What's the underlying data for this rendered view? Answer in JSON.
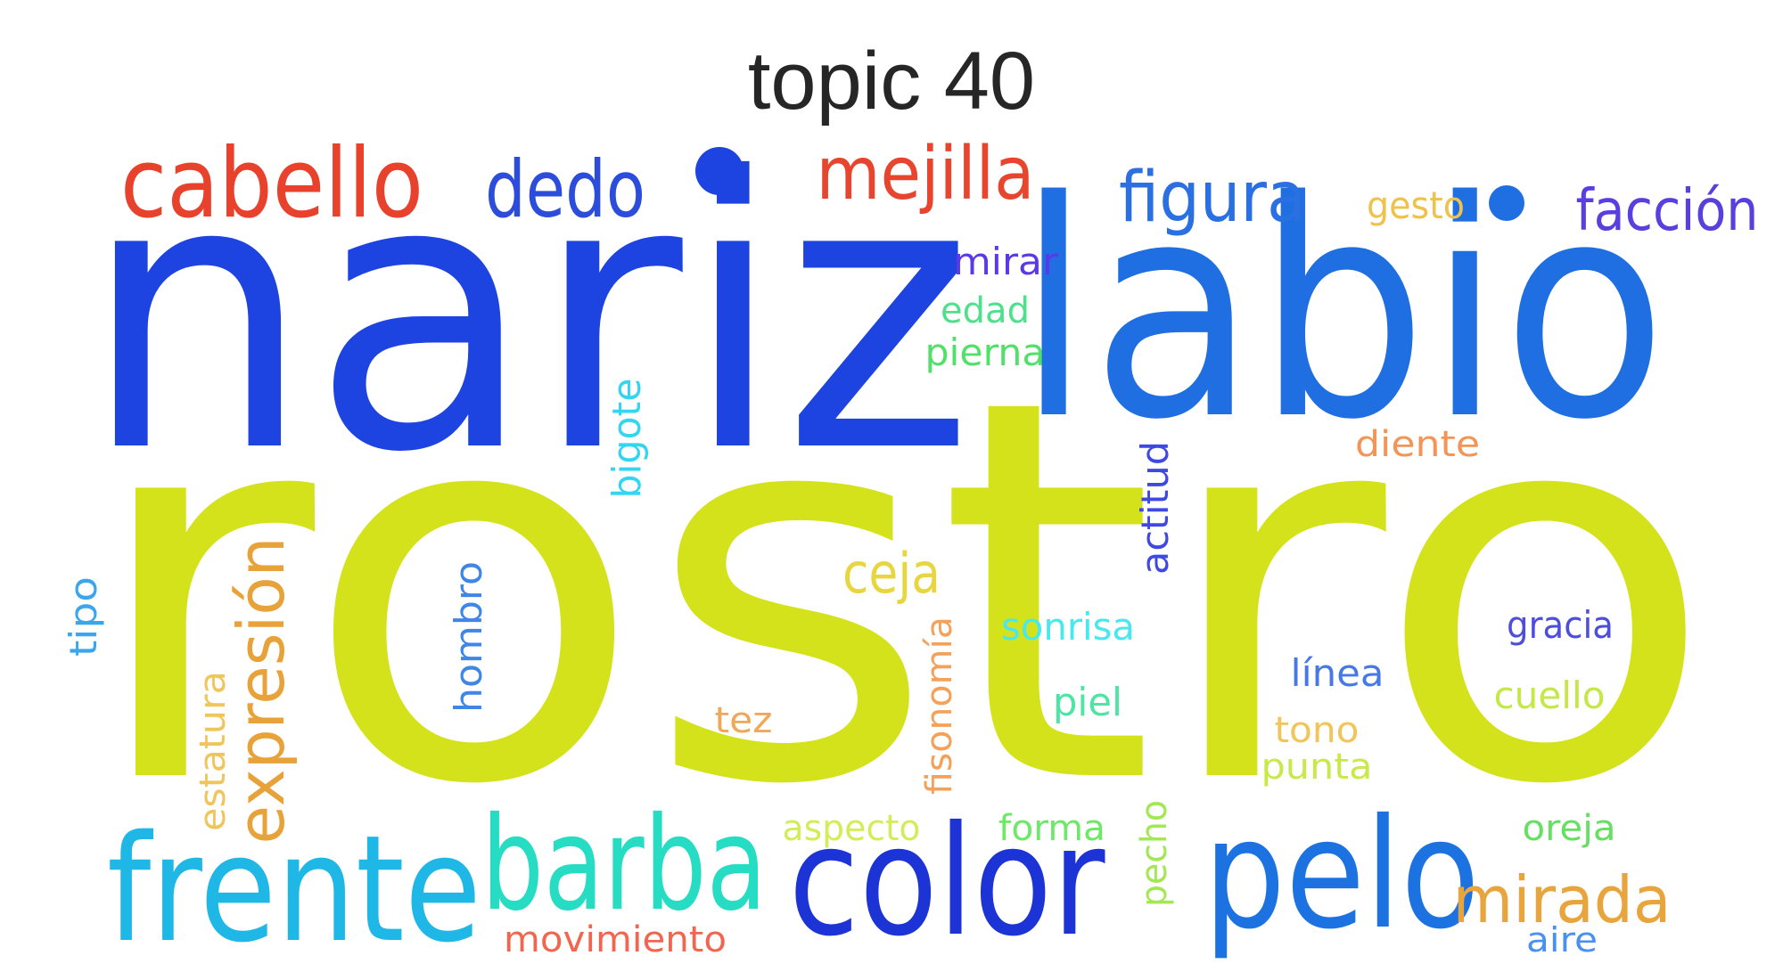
{
  "title": "topic 40",
  "words": [
    {
      "text": "rostro",
      "color": "#d4e21c"
    },
    {
      "text": "nariz",
      "color": "#1d43e0"
    },
    {
      "text": "labio",
      "color": "#1f6fe3"
    },
    {
      "text": "frente",
      "color": "#1fb8e6"
    },
    {
      "text": "barba",
      "color": "#26ddc4"
    },
    {
      "text": "color",
      "color": "#1c33d6"
    },
    {
      "text": "pelo",
      "color": "#1d72e2"
    },
    {
      "text": "cabello",
      "color": "#e8422d"
    },
    {
      "text": "dedo",
      "color": "#2c4ddb"
    },
    {
      "text": "mejilla",
      "color": "#e8452f"
    },
    {
      "text": "figura",
      "color": "#2b70e3"
    },
    {
      "text": "facción",
      "color": "#5a3fe0"
    },
    {
      "text": "gesto",
      "color": "#efc24b"
    },
    {
      "text": "mirar",
      "color": "#5b38e8"
    },
    {
      "text": "edad",
      "color": "#4fe08c"
    },
    {
      "text": "pierna",
      "color": "#53e06a"
    },
    {
      "text": "bigote",
      "color": "#33d5f0"
    },
    {
      "text": "diente",
      "color": "#f29557"
    },
    {
      "text": "actitud",
      "color": "#3f49e2"
    },
    {
      "text": "expresión",
      "color": "#e8a23a"
    },
    {
      "text": "ceja",
      "color": "#e8d640"
    },
    {
      "text": "tipo",
      "color": "#3aa7ec"
    },
    {
      "text": "hombro",
      "color": "#3f86e6"
    },
    {
      "text": "estatura",
      "color": "#efc55c"
    },
    {
      "text": "fisonomía",
      "color": "#f4a15a"
    },
    {
      "text": "sonrisa",
      "color": "#47e9ef"
    },
    {
      "text": "gracia",
      "color": "#4e4edc"
    },
    {
      "text": "línea",
      "color": "#4678e6"
    },
    {
      "text": "piel",
      "color": "#4ce5a3"
    },
    {
      "text": "cuello",
      "color": "#c3e848"
    },
    {
      "text": "tez",
      "color": "#efa858"
    },
    {
      "text": "tono",
      "color": "#f1c55a"
    },
    {
      "text": "punta",
      "color": "#c8e94a"
    },
    {
      "text": "aspecto",
      "color": "#d2ec5a"
    },
    {
      "text": "forma",
      "color": "#6fe86a"
    },
    {
      "text": "pecho",
      "color": "#a2e852"
    },
    {
      "text": "oreja",
      "color": "#66df63"
    },
    {
      "text": "mirada",
      "color": "#e8a53e"
    },
    {
      "text": "movimiento",
      "color": "#f0664e"
    },
    {
      "text": "aire",
      "color": "#4a90ee"
    }
  ],
  "dots": [
    {
      "color": "#1d43e0"
    },
    {
      "color": "#1f6fe3"
    }
  ]
}
